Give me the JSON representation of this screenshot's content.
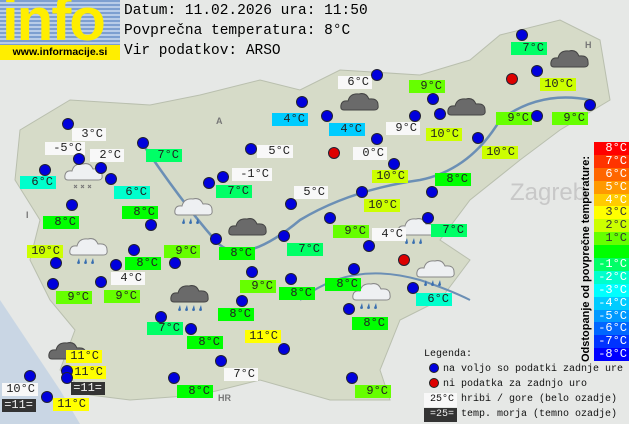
{
  "logo": {
    "word": "info",
    "url": "www.informacije.si"
  },
  "header": {
    "date_line": "Datum: 11.02.2026 ura: 11:50",
    "avg_line": "Povprečna temperatura: 8°C",
    "source_line": "Vir podatkov: ARSO"
  },
  "colors": {
    "station_ok": "#0000dd",
    "station_missing": "#dd0000",
    "mountain_bg": "#f8f8f8",
    "sea_bg": "#333333"
  },
  "stations_ok_count_shown": 60,
  "temperatures": [
    {
      "t": "3°C",
      "kind": "mountain"
    },
    {
      "t": "-5°C",
      "kind": "mountain"
    },
    {
      "t": "2°C",
      "kind": "mountain"
    },
    {
      "t": "7°C",
      "kind": "lowland",
      "color": "#00ff66"
    },
    {
      "t": "6°C",
      "kind": "lowland",
      "color": "#00ffcc"
    },
    {
      "t": "6°C",
      "kind": "lowland",
      "color": "#00ffcc"
    },
    {
      "t": "8°C",
      "kind": "lowland",
      "color": "#00ff00"
    },
    {
      "t": "8°C",
      "kind": "lowland",
      "color": "#00ff00"
    },
    {
      "t": "7°C",
      "kind": "lowland",
      "color": "#00ff66"
    },
    {
      "t": "-1°C",
      "kind": "mountain"
    },
    {
      "t": "5°C",
      "kind": "mountain"
    },
    {
      "t": "4°C",
      "kind": "lowland",
      "color": "#00ccff"
    },
    {
      "t": "5°C",
      "kind": "mountain"
    },
    {
      "t": "7°C",
      "kind": "lowland",
      "color": "#00ff66"
    },
    {
      "t": "6°C",
      "kind": "mountain"
    },
    {
      "t": "9°C",
      "kind": "lowland",
      "color": "#66ff00"
    },
    {
      "t": "10°C",
      "kind": "lowland",
      "color": "#ccff00"
    },
    {
      "t": "9°C",
      "kind": "lowland",
      "color": "#66ff00"
    },
    {
      "t": "9°C",
      "kind": "lowland",
      "color": "#66ff00"
    },
    {
      "t": "4°C",
      "kind": "lowland",
      "color": "#00ccff"
    },
    {
      "t": "9°C",
      "kind": "mountain"
    },
    {
      "t": "10°C",
      "kind": "lowland",
      "color": "#ccff00"
    },
    {
      "t": "0°C",
      "kind": "mountain"
    },
    {
      "t": "10°C",
      "kind": "lowland",
      "color": "#ccff00"
    },
    {
      "t": "10°C",
      "kind": "lowland",
      "color": "#ccff00"
    },
    {
      "t": "8°C",
      "kind": "lowland",
      "color": "#00ff00"
    },
    {
      "t": "10°C",
      "kind": "lowland",
      "color": "#ccff00"
    },
    {
      "t": "9°C",
      "kind": "lowland",
      "color": "#66ff00"
    },
    {
      "t": "4°C",
      "kind": "mountain"
    },
    {
      "t": "7°C",
      "kind": "lowland",
      "color": "#00ff66"
    },
    {
      "t": "10°C",
      "kind": "lowland",
      "color": "#ccff00"
    },
    {
      "t": "8°C",
      "kind": "lowland",
      "color": "#00ff00"
    },
    {
      "t": "9°C",
      "kind": "lowland",
      "color": "#66ff00"
    },
    {
      "t": "8°C",
      "kind": "lowland",
      "color": "#00ff00"
    },
    {
      "t": "7°C",
      "kind": "lowland",
      "color": "#00ff66"
    },
    {
      "t": "4°C",
      "kind": "mountain"
    },
    {
      "t": "9°C",
      "kind": "lowland",
      "color": "#66ff00"
    },
    {
      "t": "9°C",
      "kind": "lowland",
      "color": "#66ff00"
    },
    {
      "t": "9°C",
      "kind": "lowland",
      "color": "#66ff00"
    },
    {
      "t": "8°C",
      "kind": "lowland",
      "color": "#00ff00"
    },
    {
      "t": "8°C",
      "kind": "lowland",
      "color": "#00ff00"
    },
    {
      "t": "7°C",
      "kind": "lowland",
      "color": "#00ff66"
    },
    {
      "t": "8°C",
      "kind": "lowland",
      "color": "#00ff00"
    },
    {
      "t": "11°C",
      "kind": "lowland",
      "color": "#ffff00"
    },
    {
      "t": "11°C",
      "kind": "lowland",
      "color": "#ffff00"
    },
    {
      "t": "11°C",
      "kind": "lowland",
      "color": "#ffff00"
    },
    {
      "t": "=11=",
      "kind": "sea"
    },
    {
      "t": "10°C",
      "kind": "mountain"
    },
    {
      "t": "=11=",
      "kind": "sea"
    },
    {
      "t": "11°C",
      "kind": "lowland",
      "color": "#ffff00"
    },
    {
      "t": "7°C",
      "kind": "mountain"
    },
    {
      "t": "8°C",
      "kind": "lowland",
      "color": "#00ff00"
    },
    {
      "t": "8°C",
      "kind": "lowland",
      "color": "#00ff00"
    },
    {
      "t": "8°C",
      "kind": "lowland",
      "color": "#00ff00"
    },
    {
      "t": "6°C",
      "kind": "lowland",
      "color": "#00ffcc"
    },
    {
      "t": "9°C",
      "kind": "lowland",
      "color": "#66ff00"
    }
  ],
  "weather_icons": [
    "cloud-snow",
    "cloud-dark",
    "cloud-dark",
    "cloud-dark",
    "cloud-rain",
    "cloud-dark",
    "cloud-rain",
    "cloud-rain",
    "cloud-dark-rain",
    "cloud-dark",
    "cloud-rain",
    "cloud-rain"
  ],
  "scale": {
    "title": "Odstopanje od povprečne temperature:",
    "steps": [
      {
        "label": "8°C",
        "color": "#ff0000"
      },
      {
        "label": "7°C",
        "color": "#ff3300"
      },
      {
        "label": "6°C",
        "color": "#ff6600"
      },
      {
        "label": "5°C",
        "color": "#ff9900"
      },
      {
        "label": "4°C",
        "color": "#ffcc00"
      },
      {
        "label": "3°C",
        "color": "#ffff00"
      },
      {
        "label": "2°C",
        "color": "#ccff00"
      },
      {
        "label": "1°C",
        "color": "#66ff00"
      },
      {
        "label": "",
        "color": "#00ff00"
      },
      {
        "label": "-1°C",
        "color": "#00ff66"
      },
      {
        "label": "-2°C",
        "color": "#00ffcc"
      },
      {
        "label": "-3°C",
        "color": "#00ffff"
      },
      {
        "label": "-4°C",
        "color": "#00ccff"
      },
      {
        "label": "-5°C",
        "color": "#0099ff"
      },
      {
        "label": "-6°C",
        "color": "#0066ff"
      },
      {
        "label": "-7°C",
        "color": "#0033ff"
      },
      {
        "label": "-8°C",
        "color": "#0000ff"
      }
    ]
  },
  "legend": {
    "title": "Legenda:",
    "ok": "na voljo so podatki zadnje ure",
    "missing": "ni podatka za zadnjo uro",
    "mountain_sample": "25°C",
    "mountain_text": "hribi / gore (belo ozadje)",
    "sea_sample": "=25=",
    "sea_text": "temp. morja (temno ozadje)"
  },
  "map_labels": {
    "zagreb": "Zagreb",
    "hr": "HR",
    "a": "A",
    "i": "I",
    "h": "H"
  }
}
